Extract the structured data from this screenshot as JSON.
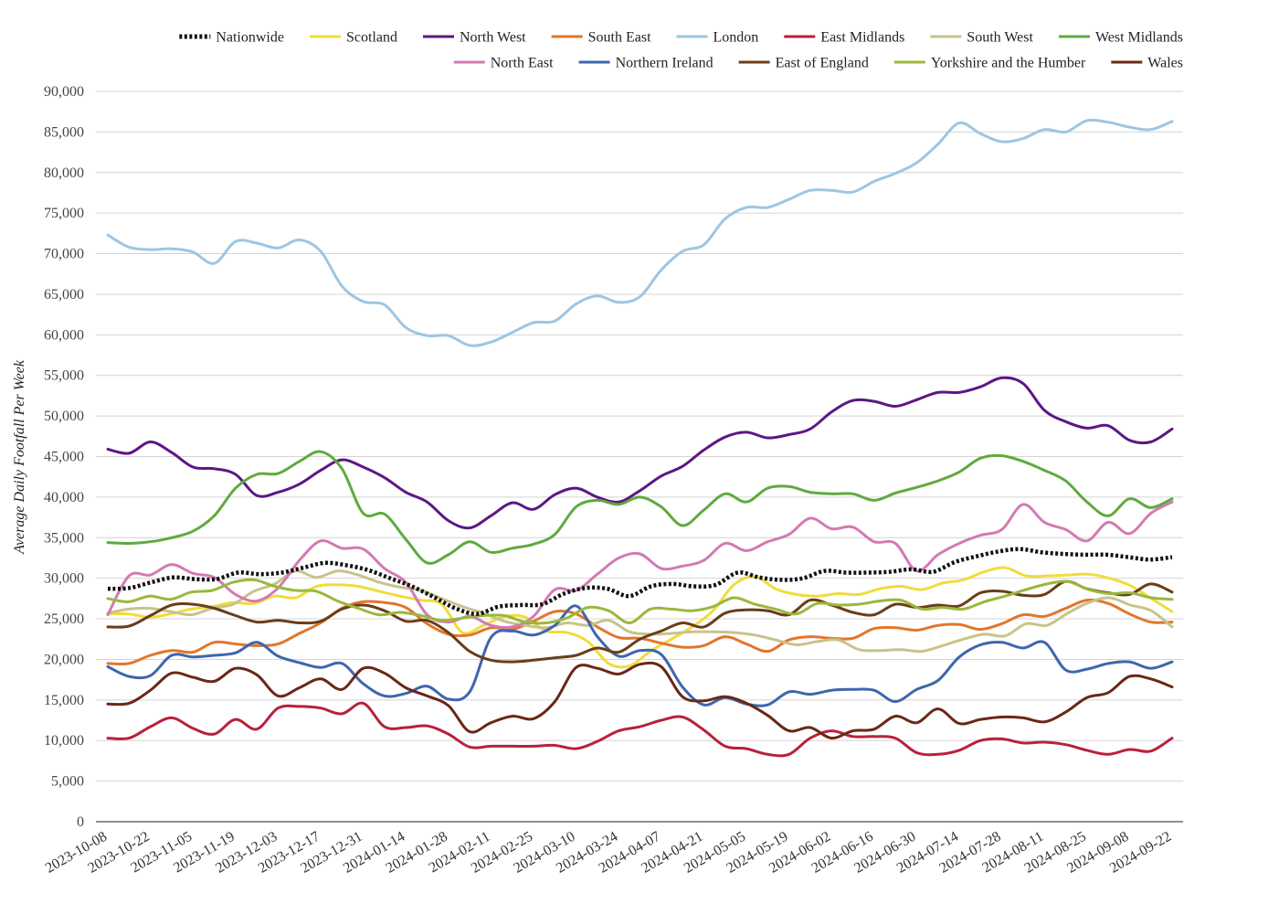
{
  "chart_data": {
    "type": "line",
    "title": "",
    "xlabel": "",
    "ylabel": "Average Daily Footfall Per Week",
    "ylim": [
      0,
      90000
    ],
    "y_ticks": [
      "0",
      "5,000",
      "10,000",
      "15,000",
      "20,000",
      "25,000",
      "30,000",
      "35,000",
      "40,000",
      "45,000",
      "50,000",
      "55,000",
      "60,000",
      "65,000",
      "70,000",
      "75,000",
      "80,000",
      "85,000",
      "90,000"
    ],
    "x_tick_labels": [
      "2023-10-08",
      "2023-10-22",
      "2023-11-05",
      "2023-11-19",
      "2023-12-03",
      "2023-12-17",
      "2023-12-31",
      "2024-01-14",
      "2024-01-28",
      "2024-02-11",
      "2024-02-25",
      "2024-03-10",
      "2024-03-24",
      "2024-04-07",
      "2024-04-21",
      "2024-05-05",
      "2024-05-19",
      "2024-06-02",
      "2024-06-16",
      "2024-06-30",
      "2024-07-14",
      "2024-07-28",
      "2024-08-11",
      "2024-08-25",
      "2024-09-08",
      "2024-09-22"
    ],
    "grid": true,
    "legend_position": "top",
    "series": [
      {
        "name": "Nationwide",
        "color": "#111111",
        "dashed": true,
        "values": [
          28700,
          28800,
          29500,
          30100,
          29900,
          29900,
          30700,
          30500,
          30700,
          31300,
          31900,
          31600,
          31000,
          30000,
          29000,
          27700,
          26300,
          25600,
          26500,
          26700,
          26800,
          28100,
          28800,
          28700,
          27800,
          29000,
          29300,
          29000,
          29200,
          30700,
          30100,
          29800,
          30000,
          30900,
          30700,
          30700,
          30800,
          31100,
          30800,
          32000,
          32700,
          33300,
          33600,
          33200,
          33000,
          32900,
          32900,
          32600,
          32300,
          32600
        ]
      },
      {
        "name": "Scotland",
        "color": "#f0dc3c",
        "values": [
          25600,
          25600,
          25200,
          25600,
          26200,
          26500,
          27000,
          26900,
          27800,
          27600,
          29000,
          29200,
          29000,
          28400,
          27800,
          27300,
          26800,
          23300,
          24200,
          25300,
          25200,
          23500,
          23300,
          22200,
          19500,
          19200,
          21000,
          22500,
          24000,
          26000,
          29200,
          30200,
          28700,
          28000,
          27800,
          28100,
          28000,
          28700,
          29000,
          28600,
          29400,
          29800,
          30800,
          31300,
          30300,
          30300,
          30400,
          30500,
          30000,
          29100,
          27500,
          25900
        ]
      },
      {
        "name": "North West",
        "color": "#5c1785",
        "values": [
          45900,
          45400,
          46800,
          45500,
          43700,
          43500,
          42800,
          40200,
          40600,
          41600,
          43300,
          44600,
          43700,
          42400,
          40600,
          39400,
          37100,
          36200,
          37700,
          39300,
          38500,
          40300,
          41100,
          40000,
          39400,
          40800,
          42600,
          43800,
          45800,
          47400,
          48000,
          47300,
          47700,
          48400,
          50500,
          51900,
          51800,
          51200,
          52000,
          52900,
          52900,
          53600,
          54700,
          54000,
          50700,
          49300,
          48500,
          48800,
          47000,
          46800,
          48400
        ]
      },
      {
        "name": "South East",
        "color": "#e2762d",
        "values": [
          19500,
          19500,
          20500,
          21100,
          20900,
          22100,
          21900,
          21700,
          21900,
          23200,
          24500,
          26300,
          27100,
          27000,
          26400,
          24400,
          23100,
          23000,
          23900,
          23700,
          24700,
          25900,
          25600,
          24000,
          22700,
          22600,
          22000,
          21500,
          21700,
          22800,
          21900,
          21000,
          22400,
          22800,
          22600,
          22600,
          23800,
          23900,
          23600,
          24200,
          24300,
          23700,
          24400,
          25500,
          25300,
          26300,
          27300,
          26900,
          25600,
          24600,
          24600
        ]
      },
      {
        "name": "London",
        "color": "#9dc6e2",
        "values": [
          72300,
          70800,
          70500,
          70600,
          70200,
          68800,
          71500,
          71300,
          70700,
          71700,
          70300,
          66000,
          64100,
          63700,
          60900,
          59900,
          59900,
          58700,
          59100,
          60300,
          61500,
          61700,
          63800,
          64800,
          64000,
          64700,
          68000,
          70300,
          71100,
          74300,
          75700,
          75700,
          76700,
          77800,
          77800,
          77600,
          78900,
          79900,
          81200,
          83500,
          86100,
          84800,
          83800,
          84200,
          85300,
          85000,
          86400,
          86200,
          85600,
          85300,
          86300
        ]
      },
      {
        "name": "East Midlands",
        "color": "#b8213c",
        "values": [
          10300,
          10300,
          11700,
          12800,
          11500,
          10800,
          12600,
          11400,
          14000,
          14200,
          14000,
          13300,
          14600,
          11700,
          11600,
          11800,
          10800,
          9200,
          9300,
          9300,
          9300,
          9400,
          9000,
          9900,
          11200,
          11700,
          12500,
          12900,
          11300,
          9300,
          9000,
          8300,
          8300,
          10300,
          11200,
          10500,
          10500,
          10300,
          8500,
          8300,
          8800,
          10000,
          10200,
          9700,
          9800,
          9500,
          8800,
          8300,
          8900,
          8700,
          10300
        ]
      },
      {
        "name": "South West",
        "color": "#c8c38a",
        "values": [
          25700,
          26200,
          26300,
          25900,
          25500,
          26300,
          26800,
          28400,
          29300,
          30900,
          30100,
          30900,
          30400,
          29500,
          28900,
          28500,
          27500,
          26500,
          25700,
          24700,
          24200,
          23900,
          24500,
          24200,
          24800,
          23400,
          23100,
          23200,
          23400,
          23400,
          23300,
          23000,
          22400,
          21800,
          22200,
          22400,
          21200,
          21100,
          21200,
          21000,
          21700,
          22500,
          23100,
          22900,
          24400,
          24200,
          25700,
          27000,
          27600,
          26700,
          26000,
          24000
        ]
      },
      {
        "name": "West Midlands",
        "color": "#5faa3e",
        "values": [
          34400,
          34300,
          34500,
          35000,
          35800,
          37700,
          41100,
          42800,
          42900,
          44400,
          45600,
          43500,
          38000,
          37900,
          34800,
          31900,
          32900,
          34500,
          33200,
          33700,
          34200,
          35400,
          38800,
          39600,
          39100,
          40000,
          38800,
          36500,
          38400,
          40400,
          39400,
          41100,
          41300,
          40600,
          40400,
          40400,
          39600,
          40500,
          41200,
          42000,
          43100,
          44800,
          45100,
          44400,
          43300,
          42000,
          39400,
          37700,
          39800,
          38700,
          39800
        ]
      },
      {
        "name": "North East",
        "color": "#d37ab4",
        "values": [
          25500,
          30300,
          30400,
          31700,
          30600,
          30100,
          28000,
          27200,
          28800,
          32200,
          34600,
          33700,
          33600,
          31200,
          29500,
          25500,
          24600,
          25300,
          24200,
          24000,
          25300,
          28600,
          28500,
          30500,
          32500,
          33000,
          31200,
          31500,
          32200,
          34300,
          33400,
          34500,
          35400,
          37400,
          36100,
          36300,
          34500,
          34300,
          30900,
          32900,
          34300,
          35300,
          36000,
          39100,
          36900,
          36000,
          34600,
          36900,
          35500,
          38000,
          39400
        ]
      },
      {
        "name": "Northern Ireland",
        "color": "#3e66ad",
        "values": [
          19100,
          17900,
          18000,
          20500,
          20300,
          20500,
          20800,
          22100,
          20400,
          19600,
          19000,
          19500,
          17000,
          15500,
          15800,
          16700,
          15100,
          16000,
          22700,
          23500,
          23000,
          24200,
          26600,
          22800,
          20400,
          21100,
          20600,
          16600,
          14400,
          15300,
          14500,
          14400,
          16000,
          15700,
          16200,
          16300,
          16200,
          14800,
          16300,
          17400,
          20300,
          21800,
          22100,
          21400,
          22100,
          18700,
          18800,
          19500,
          19700,
          18900,
          19700
        ]
      },
      {
        "name": "East of England",
        "color": "#6b3d18",
        "values": [
          24000,
          24100,
          25400,
          26700,
          26800,
          26300,
          25400,
          24600,
          24800,
          24500,
          24700,
          26200,
          26700,
          26000,
          24700,
          24800,
          23300,
          21000,
          19900,
          19700,
          19900,
          20200,
          20500,
          21400,
          20900,
          22500,
          23500,
          24500,
          24000,
          25700,
          26100,
          26000,
          25500,
          27300,
          26700,
          25800,
          25500,
          26800,
          26400,
          26700,
          26600,
          28200,
          28400,
          27900,
          28000,
          29600,
          28700,
          28200,
          28000,
          29300,
          28300
        ]
      },
      {
        "name": "Yorkshire and the Humber",
        "color": "#9ab83c",
        "values": [
          27500,
          27100,
          27800,
          27400,
          28300,
          28500,
          29500,
          29800,
          29000,
          28500,
          28400,
          27200,
          26300,
          25500,
          25800,
          25400,
          24800,
          25100,
          25400,
          25400,
          24600,
          24500,
          25100,
          26400,
          26000,
          24500,
          26200,
          26200,
          26000,
          26500,
          27600,
          26800,
          26200,
          25600,
          26900,
          26700,
          26800,
          27200,
          27300,
          26200,
          26400,
          26200,
          27100,
          27800,
          28600,
          29300,
          29600,
          28600,
          28100,
          28200,
          27600,
          27400
        ]
      },
      {
        "name": "Wales",
        "color": "#6b2716",
        "values": [
          14500,
          14600,
          16200,
          18300,
          17800,
          17300,
          18900,
          18100,
          15500,
          16500,
          17600,
          16300,
          18900,
          18300,
          16500,
          15500,
          14300,
          11100,
          12200,
          13000,
          12700,
          14800,
          19000,
          18900,
          18200,
          19400,
          19100,
          15400,
          14900,
          15400,
          14600,
          13100,
          11200,
          11600,
          10300,
          11200,
          11400,
          13000,
          12200,
          13900,
          12100,
          12600,
          12900,
          12800,
          12300,
          13500,
          15300,
          15900,
          17900,
          17600,
          16600
        ]
      }
    ]
  }
}
